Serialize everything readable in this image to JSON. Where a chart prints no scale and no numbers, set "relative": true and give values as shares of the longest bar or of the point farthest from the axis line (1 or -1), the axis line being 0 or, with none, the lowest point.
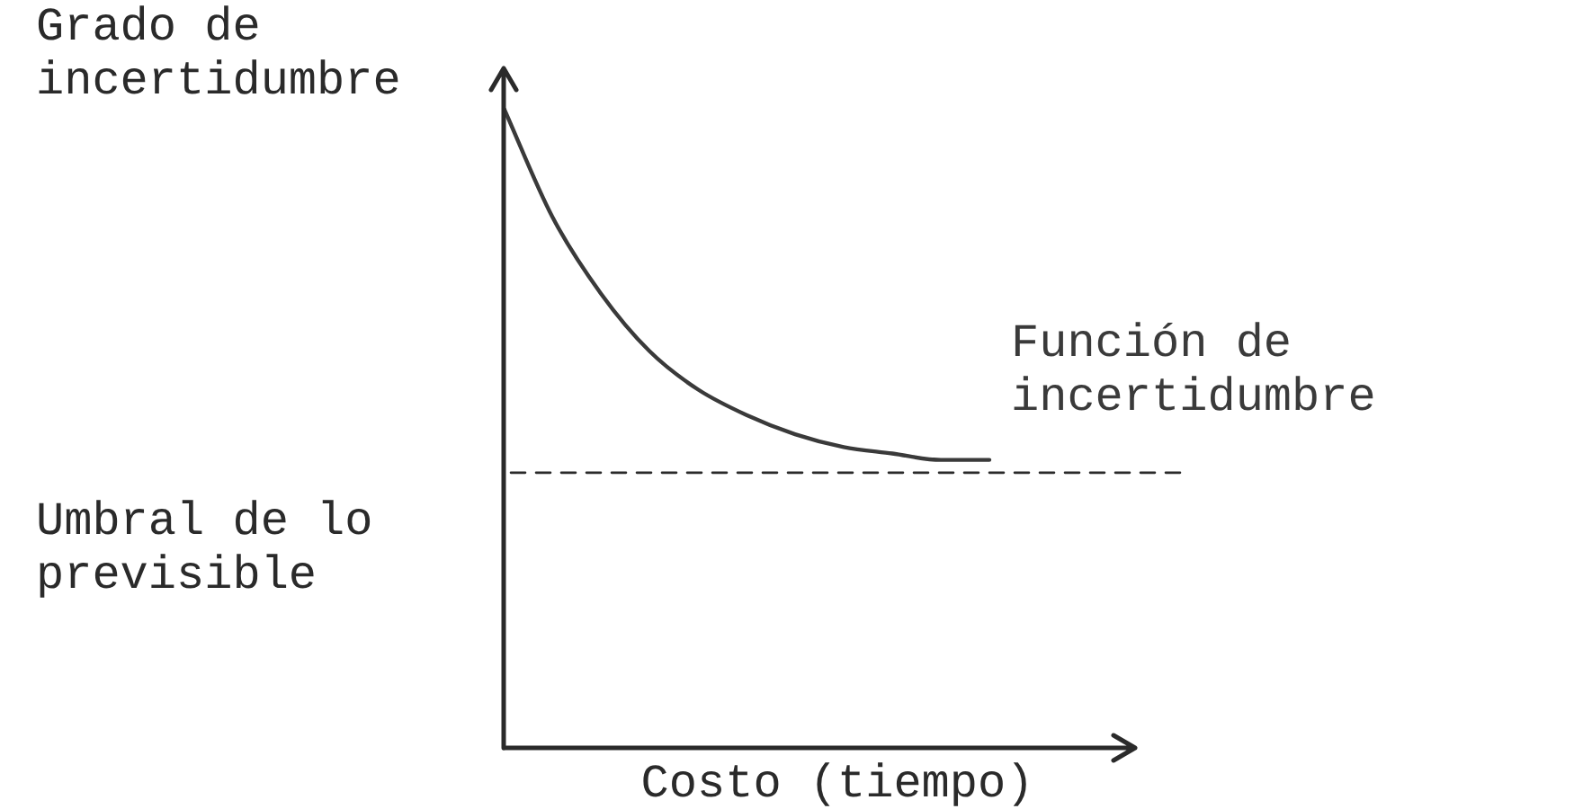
{
  "chart_data": {
    "type": "line",
    "relative": true,
    "ylabel": "Grado de incertidumbre",
    "xlabel": "Costo (tiempo)",
    "categories": [
      null,
      null,
      null,
      null,
      null,
      null,
      null,
      null,
      null,
      null,
      null,
      null,
      null,
      null
    ],
    "series": [
      {
        "name": "Función de incertidumbre",
        "color": "#3a3a3a",
        "values": [
          1,
          0.83,
          0.71,
          0.62,
          0.56,
          0.52,
          0.49,
          0.47,
          0.46,
          0.45,
          0.45,
          null,
          null,
          null
        ]
      }
    ],
    "ref_lines": [
      {
        "axis": "y",
        "value": 0.43,
        "label": "Umbral de lo previsible",
        "line_style": "dashed"
      }
    ],
    "marker": "none",
    "legend": false
  }
}
